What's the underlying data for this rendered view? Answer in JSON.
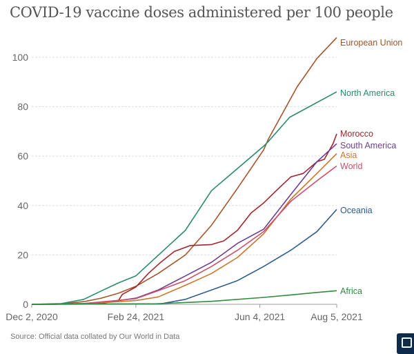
{
  "title": "COVID-19 vaccine doses administered per 100 people",
  "source": "Source: Official data collated by Our World in Data",
  "logo_icon": "owid-logo-icon",
  "chart_data": {
    "type": "line",
    "title": "COVID-19 vaccine doses administered per 100 people",
    "xlabel": "",
    "ylabel": "",
    "x_axis": {
      "type": "date",
      "range": [
        "2020-12-02",
        "2021-08-05"
      ],
      "tick_labels": [
        "Dec 2, 2020",
        "Feb 24, 2021",
        "Jun 4, 2021",
        "Aug 5, 2021"
      ],
      "tick_dates": [
        "2020-12-02",
        "2021-02-24",
        "2021-06-04",
        "2021-08-05"
      ]
    },
    "y_axis": {
      "range": [
        0,
        110
      ],
      "ticks": [
        0,
        20,
        40,
        60,
        80,
        100
      ]
    },
    "grid": "horizontal dashed",
    "legend": "inline labels at line ends (right)",
    "series": [
      {
        "name": "European Union",
        "color": "#a5532a",
        "points": [
          [
            "2020-12-02",
            0
          ],
          [
            "2020-12-22",
            0
          ],
          [
            "2021-01-13",
            1.1
          ],
          [
            "2021-01-27",
            2.5
          ],
          [
            "2021-02-10",
            4.5
          ],
          [
            "2021-02-24",
            7.3
          ],
          [
            "2021-03-14",
            12.5
          ],
          [
            "2021-04-05",
            20
          ],
          [
            "2021-04-26",
            32
          ],
          [
            "2021-05-17",
            47
          ],
          [
            "2021-06-07",
            62.5
          ],
          [
            "2021-06-11",
            67
          ],
          [
            "2021-07-04",
            88
          ],
          [
            "2021-07-20",
            99.5
          ],
          [
            "2021-08-05",
            108
          ]
        ]
      },
      {
        "name": "North America",
        "color": "#2a8a6e",
        "points": [
          [
            "2020-12-02",
            0
          ],
          [
            "2020-12-26",
            0.3
          ],
          [
            "2021-01-13",
            2
          ],
          [
            "2021-01-27",
            5.4
          ],
          [
            "2021-02-10",
            8.7
          ],
          [
            "2021-02-24",
            11.5
          ],
          [
            "2021-04-05",
            30
          ],
          [
            "2021-04-26",
            46
          ],
          [
            "2021-05-17",
            55
          ],
          [
            "2021-06-07",
            64
          ],
          [
            "2021-06-11",
            66
          ],
          [
            "2021-06-28",
            75.7
          ],
          [
            "2021-08-05",
            86
          ]
        ]
      },
      {
        "name": "Morocco",
        "color": "#a2252c",
        "points": [
          [
            "2020-12-02",
            0
          ],
          [
            "2021-01-27",
            0.3
          ],
          [
            "2021-02-10",
            1.6
          ],
          [
            "2021-02-13",
            4
          ],
          [
            "2021-02-24",
            7
          ],
          [
            "2021-03-06",
            12.5
          ],
          [
            "2021-03-16",
            17
          ],
          [
            "2021-03-27",
            21.4
          ],
          [
            "2021-04-09",
            23.8
          ],
          [
            "2021-04-26",
            24.2
          ],
          [
            "2021-05-06",
            25.7
          ],
          [
            "2021-05-17",
            30
          ],
          [
            "2021-05-28",
            37
          ],
          [
            "2021-06-07",
            41
          ],
          [
            "2021-06-18",
            46.4
          ],
          [
            "2021-06-29",
            51.6
          ],
          [
            "2021-07-09",
            53
          ],
          [
            "2021-07-20",
            57.7
          ],
          [
            "2021-07-26",
            58.7
          ],
          [
            "2021-08-02",
            65
          ],
          [
            "2021-08-05",
            69
          ]
        ]
      },
      {
        "name": "South America",
        "color": "#6d3e91",
        "points": [
          [
            "2020-12-02",
            0
          ],
          [
            "2021-01-13",
            0.3
          ],
          [
            "2021-02-10",
            1.5
          ],
          [
            "2021-02-24",
            2.5
          ],
          [
            "2021-03-14",
            5.8
          ],
          [
            "2021-04-05",
            11.5
          ],
          [
            "2021-04-26",
            17
          ],
          [
            "2021-05-17",
            24.7
          ],
          [
            "2021-06-07",
            30.4
          ],
          [
            "2021-06-29",
            44.5
          ],
          [
            "2021-07-20",
            57.7
          ],
          [
            "2021-08-05",
            65
          ]
        ]
      },
      {
        "name": "Asia",
        "color": "#c8772c",
        "points": [
          [
            "2020-12-02",
            0
          ],
          [
            "2021-01-13",
            0.2
          ],
          [
            "2021-02-24",
            1.5
          ],
          [
            "2021-03-14",
            3
          ],
          [
            "2021-04-05",
            7.7
          ],
          [
            "2021-04-26",
            12.5
          ],
          [
            "2021-05-17",
            19
          ],
          [
            "2021-06-07",
            28.5
          ],
          [
            "2021-06-29",
            42.6
          ],
          [
            "2021-07-20",
            53
          ],
          [
            "2021-08-05",
            61
          ]
        ]
      },
      {
        "name": "World",
        "color": "#c9506a",
        "points": [
          [
            "2020-12-02",
            0
          ],
          [
            "2021-01-13",
            0.3
          ],
          [
            "2021-02-24",
            2.3
          ],
          [
            "2021-03-14",
            5.5
          ],
          [
            "2021-04-05",
            9.6
          ],
          [
            "2021-04-26",
            15.3
          ],
          [
            "2021-05-17",
            21.9
          ],
          [
            "2021-06-07",
            29.4
          ],
          [
            "2021-06-29",
            41.7
          ],
          [
            "2021-07-20",
            50
          ],
          [
            "2021-08-05",
            56
          ]
        ]
      },
      {
        "name": "Oceania",
        "color": "#2d5c91",
        "points": [
          [
            "2020-12-02",
            0
          ],
          [
            "2021-03-16",
            0.2
          ],
          [
            "2021-04-05",
            2
          ],
          [
            "2021-04-26",
            5.8
          ],
          [
            "2021-05-17",
            9.6
          ],
          [
            "2021-06-07",
            15.3
          ],
          [
            "2021-06-29",
            21.9
          ],
          [
            "2021-07-20",
            29.4
          ],
          [
            "2021-08-05",
            38.4
          ]
        ]
      },
      {
        "name": "Africa",
        "color": "#2e8b3d",
        "points": [
          [
            "2020-12-02",
            0
          ],
          [
            "2021-03-12",
            0.2
          ],
          [
            "2021-04-26",
            1.2
          ],
          [
            "2021-06-07",
            2.8
          ],
          [
            "2021-06-29",
            3.8
          ],
          [
            "2021-07-20",
            4.8
          ],
          [
            "2021-08-05",
            5.5
          ]
        ]
      }
    ]
  }
}
